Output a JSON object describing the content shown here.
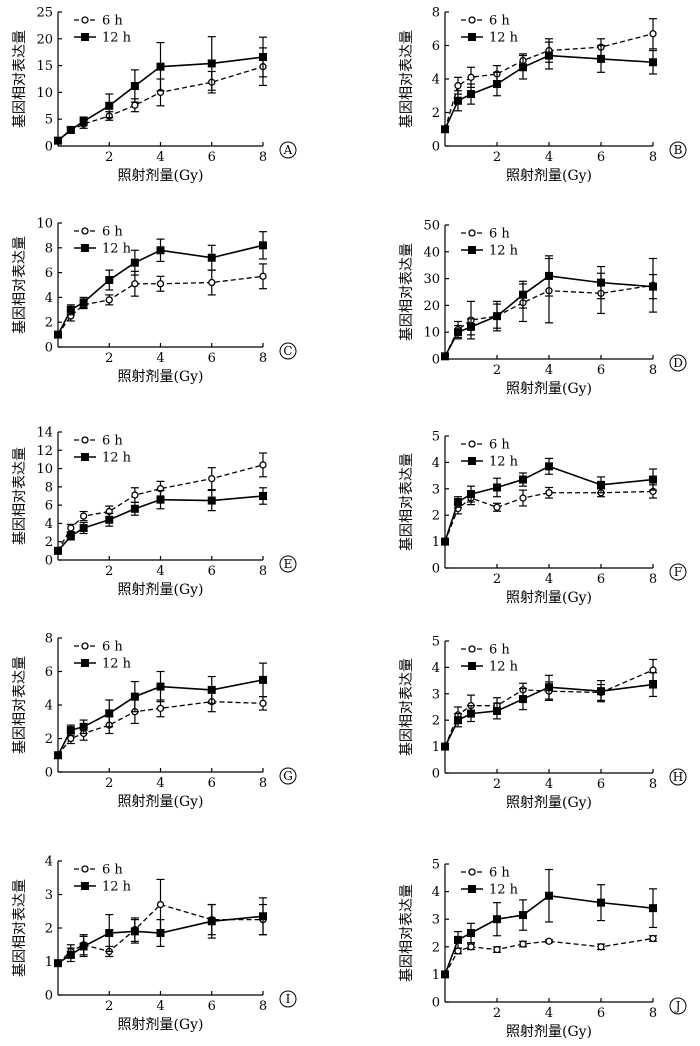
{
  "chart_data": [
    {
      "type": "line",
      "label": "A",
      "xlabel": "照射剂量(Gy)",
      "ylabel": "基因相对表达量",
      "xlim": [
        0,
        8
      ],
      "ylim": [
        0,
        25
      ],
      "xticks": [
        2,
        4,
        6,
        8
      ],
      "yticks": [
        0,
        5,
        10,
        15,
        20,
        25
      ],
      "x": [
        0,
        0.5,
        1,
        2,
        3,
        4,
        6,
        8
      ],
      "series": [
        {
          "name": "6 h",
          "style": "dashed-open",
          "values": [
            1,
            2.9,
            4.1,
            5.6,
            7.6,
            10.0,
            11.9,
            14.8
          ],
          "errors": [
            0.2,
            0.5,
            0.8,
            0.8,
            1.2,
            2.5,
            2.0,
            3.5
          ]
        },
        {
          "name": "12 h",
          "style": "solid-filled",
          "values": [
            1,
            3.0,
            4.6,
            7.5,
            11.2,
            14.8,
            15.4,
            16.6
          ],
          "errors": [
            0.2,
            0.5,
            0.8,
            2.2,
            3.0,
            4.5,
            5.0,
            3.7
          ]
        }
      ]
    },
    {
      "type": "line",
      "label": "B",
      "xlabel": "照射剂量(Gy)",
      "ylabel": "基因相对表达量",
      "xlim": [
        0,
        8
      ],
      "ylim": [
        0,
        8
      ],
      "xticks": [
        2,
        4,
        6,
        8
      ],
      "yticks": [
        0,
        2,
        4,
        6,
        8
      ],
      "x": [
        0,
        0.5,
        1,
        2,
        3,
        4,
        6,
        8
      ],
      "series": [
        {
          "name": "6 h",
          "style": "dashed-open",
          "values": [
            1,
            3.6,
            4.1,
            4.3,
            5.1,
            5.7,
            5.9,
            6.7
          ],
          "errors": [
            0.1,
            0.5,
            0.6,
            0.5,
            0.4,
            0.7,
            0.5,
            0.9
          ]
        },
        {
          "name": "12 h",
          "style": "solid-filled",
          "values": [
            1,
            2.7,
            3.1,
            3.7,
            4.7,
            5.4,
            5.2,
            5.0
          ],
          "errors": [
            0.1,
            0.6,
            0.6,
            0.7,
            0.7,
            0.8,
            0.8,
            0.7
          ]
        }
      ]
    },
    {
      "type": "line",
      "label": "C",
      "xlabel": "照射剂量(Gy)",
      "ylabel": "基因相对表达量",
      "xlim": [
        0,
        8
      ],
      "ylim": [
        0,
        10
      ],
      "xticks": [
        2,
        4,
        6,
        8
      ],
      "yticks": [
        0,
        2,
        4,
        6,
        8,
        10
      ],
      "x": [
        0,
        0.5,
        1,
        2,
        3,
        4,
        6,
        8
      ],
      "series": [
        {
          "name": "6 h",
          "style": "dashed-open",
          "values": [
            1,
            2.5,
            3.4,
            3.8,
            5.1,
            5.1,
            5.2,
            5.7
          ],
          "errors": [
            0.1,
            0.4,
            0.3,
            0.4,
            1.0,
            0.6,
            1.0,
            1.0
          ]
        },
        {
          "name": "12 h",
          "style": "solid-filled",
          "values": [
            1,
            3.0,
            3.6,
            5.4,
            6.8,
            7.8,
            7.2,
            8.2
          ],
          "errors": [
            0.1,
            0.4,
            0.4,
            0.8,
            1.0,
            0.9,
            1.0,
            1.1
          ]
        }
      ]
    },
    {
      "type": "line",
      "label": "D",
      "xlabel": "照射剂量(Gy)",
      "ylabel": "基因相对表达量",
      "xlim": [
        0,
        8
      ],
      "ylim": [
        0,
        50
      ],
      "xticks": [
        2,
        4,
        6,
        8
      ],
      "yticks": [
        0,
        10,
        20,
        30,
        40,
        50
      ],
      "x": [
        0,
        0.5,
        1,
        2,
        3,
        4,
        6,
        8
      ],
      "series": [
        {
          "name": "6 h",
          "style": "dashed-open",
          "values": [
            1,
            11.0,
            14.5,
            16.0,
            21.0,
            25.5,
            24.5,
            27.5
          ],
          "errors": [
            0.3,
            3.0,
            7.0,
            5.5,
            7.0,
            12.0,
            7.5,
            10.0
          ]
        },
        {
          "name": "12 h",
          "style": "solid-filled",
          "values": [
            1,
            10.0,
            12.0,
            16.0,
            24.0,
            31.0,
            28.5,
            27.0
          ],
          "errors": [
            0.3,
            2.5,
            3.0,
            4.5,
            5.0,
            7.5,
            6.0,
            4.5
          ]
        }
      ]
    },
    {
      "type": "line",
      "label": "E",
      "xlabel": "照射剂量(Gy)",
      "ylabel": "基因相对表达量",
      "xlim": [
        0,
        8
      ],
      "ylim": [
        0,
        14
      ],
      "xticks": [
        2,
        4,
        6,
        8
      ],
      "yticks": [
        0,
        2,
        4,
        6,
        8,
        10,
        12,
        14
      ],
      "x": [
        0,
        0.5,
        1,
        2,
        3,
        4,
        6,
        8
      ],
      "series": [
        {
          "name": "6 h",
          "style": "dashed-open",
          "values": [
            1,
            3.5,
            4.8,
            5.3,
            7.1,
            7.8,
            8.9,
            10.4
          ],
          "errors": [
            0.2,
            0.4,
            0.5,
            0.6,
            0.8,
            0.8,
            1.2,
            1.3
          ]
        },
        {
          "name": "12 h",
          "style": "solid-filled",
          "values": [
            1,
            2.6,
            3.5,
            4.4,
            5.6,
            6.6,
            6.5,
            7.0
          ],
          "errors": [
            0.2,
            0.4,
            0.6,
            0.7,
            0.7,
            1.0,
            1.1,
            0.9
          ]
        }
      ]
    },
    {
      "type": "line",
      "label": "F",
      "xlabel": "照射剂量(Gy)",
      "ylabel": "基因相对表达量",
      "xlim": [
        0,
        8
      ],
      "ylim": [
        0,
        5
      ],
      "xticks": [
        2,
        4,
        6,
        8
      ],
      "yticks": [
        0,
        1,
        2,
        3,
        4,
        5
      ],
      "x": [
        0,
        0.5,
        1,
        2,
        3,
        4,
        6,
        8
      ],
      "series": [
        {
          "name": "6 h",
          "style": "dashed-open",
          "values": [
            1,
            2.25,
            2.65,
            2.3,
            2.65,
            2.85,
            2.85,
            2.9
          ],
          "errors": [
            0.05,
            0.2,
            0.25,
            0.15,
            0.3,
            0.2,
            0.15,
            0.25
          ]
        },
        {
          "name": "12 h",
          "style": "solid-filled",
          "values": [
            1,
            2.5,
            2.8,
            3.05,
            3.35,
            3.85,
            3.15,
            3.35
          ],
          "errors": [
            0.05,
            0.2,
            0.3,
            0.35,
            0.25,
            0.3,
            0.3,
            0.4
          ]
        }
      ]
    },
    {
      "type": "line",
      "label": "G",
      "xlabel": "照射剂量(Gy)",
      "ylabel": "基因相对表达量",
      "xlim": [
        0,
        8
      ],
      "ylim": [
        0,
        8
      ],
      "xticks": [
        2,
        4,
        6,
        8
      ],
      "yticks": [
        0,
        2,
        4,
        6,
        8
      ],
      "x": [
        0,
        0.5,
        1,
        2,
        3,
        4,
        6,
        8
      ],
      "series": [
        {
          "name": "6 h",
          "style": "dashed-open",
          "values": [
            1,
            2.0,
            2.3,
            2.8,
            3.6,
            3.8,
            4.2,
            4.1
          ],
          "errors": [
            0.1,
            0.3,
            0.4,
            0.5,
            0.7,
            0.5,
            0.6,
            0.4
          ]
        },
        {
          "name": "12 h",
          "style": "solid-filled",
          "values": [
            1,
            2.5,
            2.7,
            3.5,
            4.5,
            5.1,
            4.9,
            5.5
          ],
          "errors": [
            0.1,
            0.3,
            0.4,
            0.8,
            0.9,
            0.9,
            0.8,
            1.0
          ]
        }
      ]
    },
    {
      "type": "line",
      "label": "H",
      "xlabel": "照射剂量(Gy)",
      "ylabel": "基因相对表达量",
      "xlim": [
        0,
        8
      ],
      "ylim": [
        0,
        5
      ],
      "xticks": [
        2,
        4,
        6,
        8
      ],
      "yticks": [
        0,
        1,
        2,
        3,
        4,
        5
      ],
      "x": [
        0,
        0.5,
        1,
        2,
        3,
        4,
        6,
        8
      ],
      "series": [
        {
          "name": "6 h",
          "style": "dashed-open",
          "values": [
            1,
            2.2,
            2.55,
            2.55,
            3.15,
            3.1,
            3.05,
            3.9
          ],
          "errors": [
            0.05,
            0.3,
            0.4,
            0.3,
            0.25,
            0.35,
            0.3,
            0.4
          ]
        },
        {
          "name": "12 h",
          "style": "solid-filled",
          "values": [
            1,
            2.0,
            2.25,
            2.35,
            2.8,
            3.25,
            3.1,
            3.35
          ],
          "errors": [
            0.05,
            0.25,
            0.3,
            0.3,
            0.4,
            0.45,
            0.4,
            0.45
          ]
        }
      ]
    },
    {
      "type": "line",
      "label": "I",
      "xlabel": "照射剂量(Gy)",
      "ylabel": "基因相对表达量",
      "xlim": [
        0,
        8
      ],
      "ylim": [
        0,
        4
      ],
      "xticks": [
        2,
        4,
        6,
        8
      ],
      "yticks": [
        0,
        1,
        2,
        3,
        4
      ],
      "x": [
        0,
        0.5,
        1,
        2,
        3,
        4,
        6,
        8
      ],
      "series": [
        {
          "name": "6 h",
          "style": "dashed-open",
          "values": [
            0.95,
            1.3,
            1.5,
            1.3,
            1.95,
            2.7,
            2.25,
            2.25
          ],
          "errors": [
            0.05,
            0.2,
            0.3,
            0.15,
            0.35,
            0.75,
            0.45,
            0.45
          ]
        },
        {
          "name": "12 h",
          "style": "solid-filled",
          "values": [
            0.95,
            1.2,
            1.45,
            1.85,
            1.9,
            1.85,
            2.2,
            2.35
          ],
          "errors": [
            0.05,
            0.2,
            0.3,
            0.55,
            0.35,
            0.4,
            0.5,
            0.55
          ]
        }
      ]
    },
    {
      "type": "line",
      "label": "J",
      "xlabel": "照射剂量(Gy)",
      "ylabel": "基因相对表达量",
      "xlim": [
        0,
        8
      ],
      "ylim": [
        0,
        5
      ],
      "xticks": [
        2,
        4,
        6,
        8
      ],
      "yticks": [
        0,
        1,
        2,
        3,
        4,
        5
      ],
      "x": [
        0,
        0.5,
        1,
        2,
        3,
        4,
        6,
        8
      ],
      "series": [
        {
          "name": "6 h",
          "style": "dashed-open",
          "values": [
            1,
            1.85,
            2.0,
            1.9,
            2.1,
            2.2,
            2.0,
            2.3
          ],
          "errors": [
            0.05,
            0.1,
            0.1,
            0.1,
            0.1,
            0.05,
            0.1,
            0.1
          ]
        },
        {
          "name": "12 h",
          "style": "solid-filled",
          "values": [
            1,
            2.25,
            2.5,
            3.0,
            3.15,
            3.85,
            3.6,
            3.4
          ],
          "errors": [
            0.05,
            0.3,
            0.35,
            0.6,
            0.55,
            0.95,
            0.65,
            0.7
          ]
        }
      ]
    }
  ]
}
